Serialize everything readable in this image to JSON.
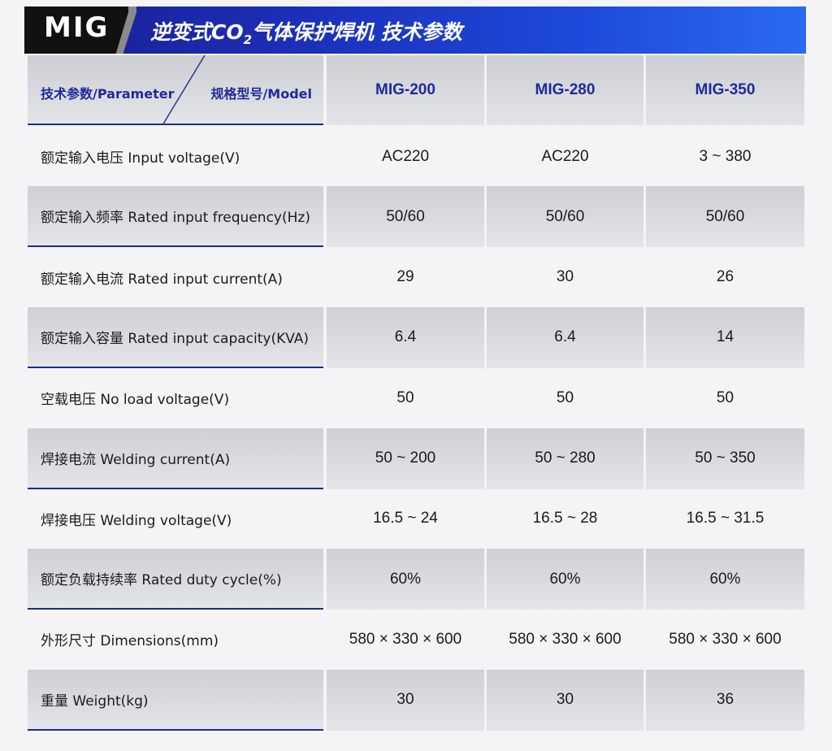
{
  "banner": {
    "tag": "MIG",
    "title_prefix": "逆变式CO",
    "title_sub": "2",
    "title_suffix": "气体保护焊机 技术参数"
  },
  "table": {
    "header": {
      "parameter": "技术参数/Parameter",
      "model": "规格型号/Model",
      "models": [
        "MIG-200",
        "MIG-280",
        "MIG-350"
      ]
    },
    "rows": [
      {
        "label": "额定输入电压 Input voltage(V)",
        "values": [
          "AC220",
          "AC220",
          "3 ~ 380"
        ]
      },
      {
        "label": "额定输入频率 Rated input frequency(Hz)",
        "values": [
          "50/60",
          "50/60",
          "50/60"
        ]
      },
      {
        "label": "额定输入电流 Rated input current(A)",
        "values": [
          "29",
          "30",
          "26"
        ]
      },
      {
        "label": "额定输入容量 Rated input capacity(KVA)",
        "values": [
          "6.4",
          "6.4",
          "14"
        ]
      },
      {
        "label": "空载电压 No load voltage(V)",
        "values": [
          "50",
          "50",
          "50"
        ]
      },
      {
        "label": "焊接电流 Welding current(A)",
        "values": [
          "50 ~ 200",
          "50 ~ 280",
          "50 ~ 350"
        ]
      },
      {
        "label": "焊接电压 Welding voltage(V)",
        "values": [
          "16.5 ~ 24",
          "16.5 ~ 28",
          "16.5 ~ 31.5"
        ]
      },
      {
        "label": "额定负载持续率 Rated duty cycle(%)",
        "values": [
          "60%",
          "60%",
          "60%"
        ]
      },
      {
        "label": "外形尺寸 Dimensions(mm)",
        "values": [
          "580 × 330 × 600",
          "580 × 330 × 600",
          "580 × 330 × 600"
        ]
      },
      {
        "label": "重量 Weight(kg)",
        "values": [
          "30",
          "30",
          "36"
        ]
      }
    ]
  },
  "colors": {
    "banner_blue": "#1d49d9",
    "header_text": "#1f2a9a",
    "row_shade": "#dcdde1"
  }
}
